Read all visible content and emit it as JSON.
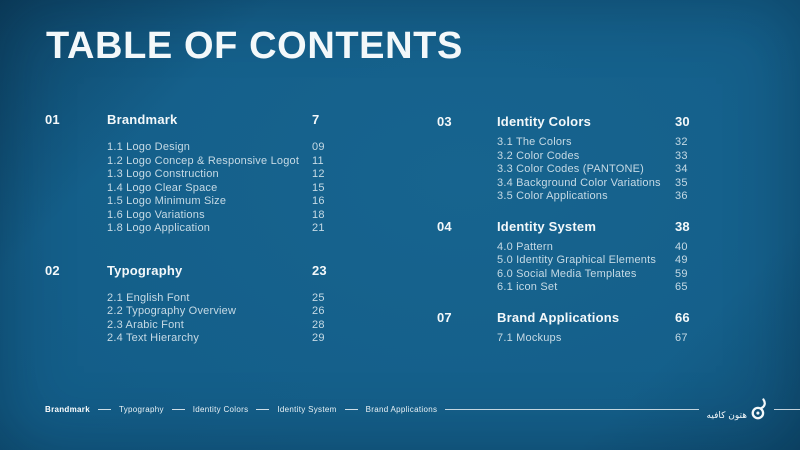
{
  "slide": {
    "title": "TABLE OF CONTENTS",
    "colors": {
      "bg_center": "#17648f",
      "bg_mid": "#135d88",
      "bg_edge": "#0c4266",
      "heading": "#f3f8fa",
      "muted": "#c6dae5",
      "footer_text": "#e9f2f6"
    },
    "columns": [
      {
        "sections": [
          {
            "num": "01",
            "title": "Brandmark",
            "page": "7",
            "items": [
              {
                "label": "1.1 Logo Design",
                "page": "09"
              },
              {
                "label": "1.2 Logo Concep & Responsive Logot",
                "page": "11"
              },
              {
                "label": "1.3 Logo Construction",
                "page": "12"
              },
              {
                "label": "1.4 Logo Clear Space",
                "page": "15"
              },
              {
                "label": "1.5 Logo Minimum Size",
                "page": "16"
              },
              {
                "label": "1.6 Logo Variations",
                "page": "18"
              },
              {
                "label": "1.8 Logo Application",
                "page": "21"
              }
            ]
          },
          {
            "num": "02",
            "title": "Typography",
            "page": "23",
            "items": [
              {
                "label": "2.1 English Font",
                "page": "25"
              },
              {
                "label": "2.2 Typography Overview",
                "page": "26"
              },
              {
                "label": "2.3 Arabic Font",
                "page": "28"
              },
              {
                "label": "2.4 Text Hierarchy",
                "page": "29"
              }
            ]
          }
        ]
      },
      {
        "sections": [
          {
            "num": "03",
            "title": "Identity Colors",
            "page": "30",
            "items": [
              {
                "label": "3.1 The Colors",
                "page": "32"
              },
              {
                "label": "3.2 Color Codes",
                "page": "33"
              },
              {
                "label": "3.3 Color Codes (PANTONE)",
                "page": "34"
              },
              {
                "label": "3.4 Background Color Variations",
                "page": "35"
              },
              {
                "label": "3.5 Color Applications",
                "page": "36"
              }
            ]
          },
          {
            "num": "04",
            "title": "Identity System",
            "page": "38",
            "items": [
              {
                "label": "4.0 Pattern",
                "page": "40"
              },
              {
                "label": "5.0 Identity Graphical Elements",
                "page": "49"
              },
              {
                "label": "6.0 Social Media Templates",
                "page": "59"
              },
              {
                "label": "6.1 icon Set",
                "page": "65"
              }
            ]
          },
          {
            "num": "07",
            "title": "Brand Applications",
            "page": "66",
            "items": [
              {
                "label": "7.1 Mockups",
                "page": "67"
              }
            ]
          }
        ]
      }
    ]
  },
  "footer": {
    "nav": [
      {
        "label": "Brandmark",
        "active": true
      },
      {
        "label": "Typography",
        "active": false
      },
      {
        "label": "Identity Colors",
        "active": false
      },
      {
        "label": "Identity System",
        "active": false
      },
      {
        "label": "Brand Applications",
        "active": false
      }
    ],
    "logo": {
      "arabic_text": "هتون كافيه",
      "mark": "drop-mark"
    }
  }
}
